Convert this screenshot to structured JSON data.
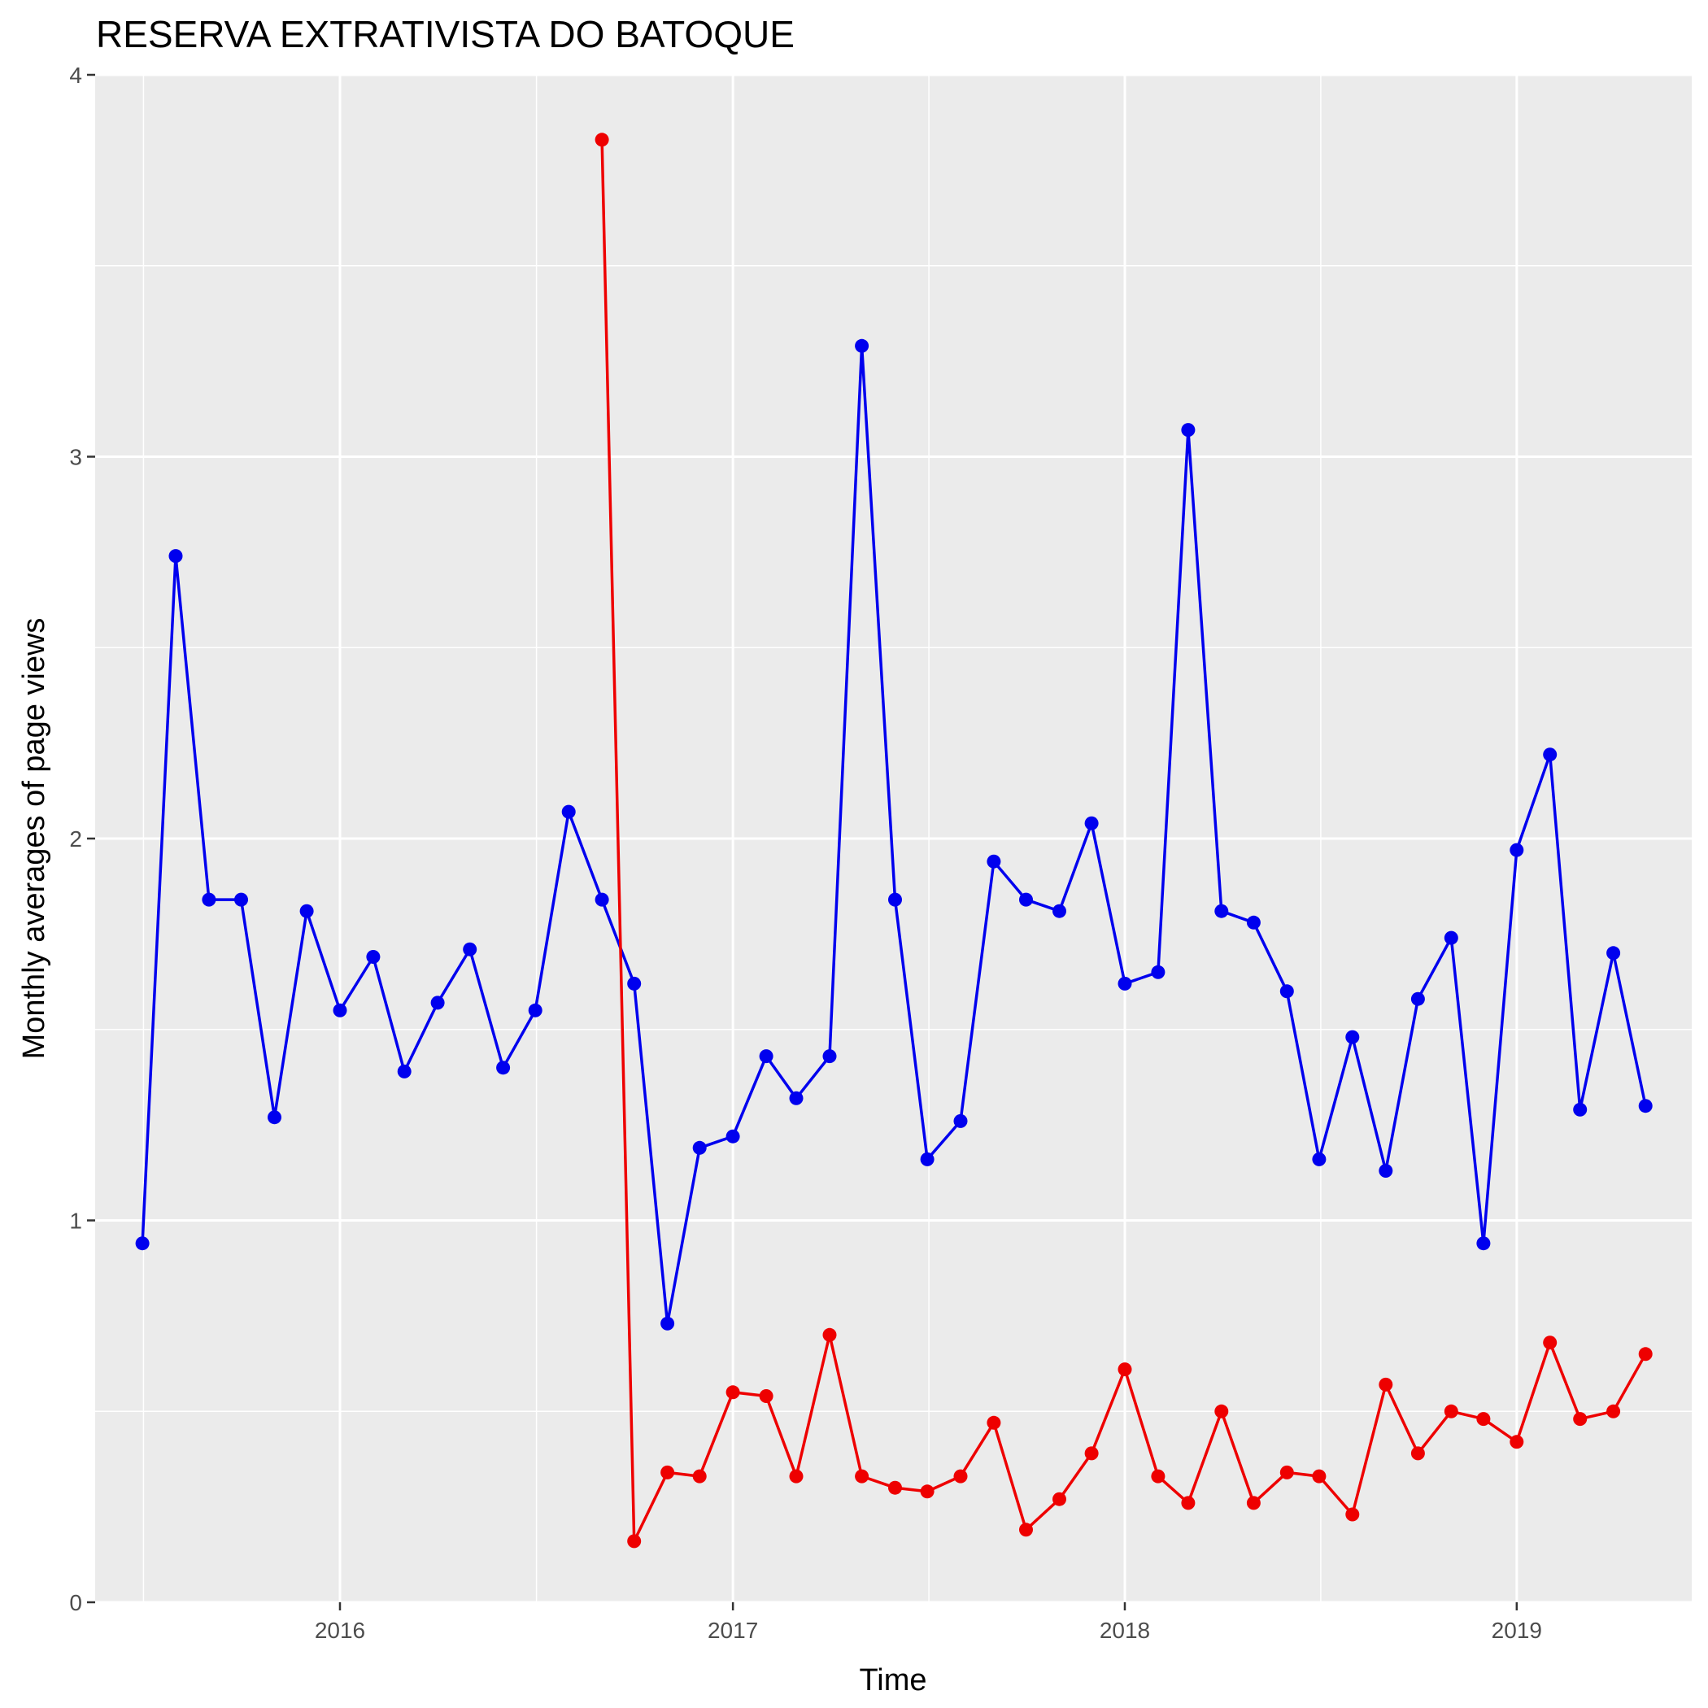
{
  "chart_data": {
    "type": "line",
    "title": "RESERVA EXTRATIVISTA DO BATOQUE",
    "xlabel": "Time",
    "ylabel": "Monthly averages of page views",
    "ylim": [
      0,
      4
    ],
    "xlim": [
      "2015-05-18",
      "2019-06-13"
    ],
    "yticks": [
      0,
      1,
      2,
      3,
      4
    ],
    "xticks": [
      {
        "label": "2016",
        "date": "2016-01-01"
      },
      {
        "label": "2017",
        "date": "2017-01-01"
      },
      {
        "label": "2018",
        "date": "2018-01-01"
      },
      {
        "label": "2019",
        "date": "2019-01-01"
      }
    ],
    "grid": true,
    "legend": "none",
    "series": [
      {
        "color": "#0000ee",
        "x": [
          "2015-07-01",
          "2015-08-01",
          "2015-09-01",
          "2015-10-01",
          "2015-11-01",
          "2015-12-01",
          "2016-01-01",
          "2016-02-01",
          "2016-03-01",
          "2016-04-01",
          "2016-05-01",
          "2016-06-01",
          "2016-07-01",
          "2016-08-01",
          "2016-09-01",
          "2016-10-01",
          "2016-11-01",
          "2016-12-01",
          "2017-01-01",
          "2017-02-01",
          "2017-03-01",
          "2017-04-01",
          "2017-05-01",
          "2017-06-01",
          "2017-07-01",
          "2017-08-01",
          "2017-09-01",
          "2017-10-01",
          "2017-11-01",
          "2017-12-01",
          "2018-01-01",
          "2018-02-01",
          "2018-03-01",
          "2018-04-01",
          "2018-05-01",
          "2018-06-01",
          "2018-07-01",
          "2018-08-01",
          "2018-09-01",
          "2018-10-01",
          "2018-11-01",
          "2018-12-01",
          "2019-01-01",
          "2019-02-01",
          "2019-03-01",
          "2019-04-01",
          "2019-05-01"
        ],
        "values": [
          0.94,
          2.74,
          1.84,
          1.84,
          1.27,
          1.81,
          1.55,
          1.69,
          1.39,
          1.57,
          1.71,
          1.4,
          1.55,
          2.07,
          1.84,
          1.62,
          0.73,
          1.19,
          1.22,
          1.43,
          1.32,
          1.43,
          3.29,
          1.84,
          1.16,
          1.26,
          1.94,
          1.84,
          1.81,
          2.04,
          1.62,
          1.65,
          3.07,
          1.81,
          1.78,
          1.6,
          1.16,
          1.48,
          1.13,
          1.58,
          1.74,
          0.94,
          1.97,
          2.22,
          1.29,
          1.7,
          1.3
        ]
      },
      {
        "color": "#ee0000",
        "x": [
          "2016-09-01",
          "2016-10-01",
          "2016-11-01",
          "2016-12-01",
          "2017-01-01",
          "2017-02-01",
          "2017-03-01",
          "2017-04-01",
          "2017-05-01",
          "2017-06-01",
          "2017-07-01",
          "2017-08-01",
          "2017-09-01",
          "2017-10-01",
          "2017-11-01",
          "2017-12-01",
          "2018-01-01",
          "2018-02-01",
          "2018-03-01",
          "2018-04-01",
          "2018-05-01",
          "2018-06-01",
          "2018-07-01",
          "2018-08-01",
          "2018-09-01",
          "2018-10-01",
          "2018-11-01",
          "2018-12-01",
          "2019-01-01",
          "2019-02-01",
          "2019-03-01",
          "2019-04-01",
          "2019-05-01"
        ],
        "values": [
          3.83,
          0.16,
          0.34,
          0.33,
          0.55,
          0.54,
          0.33,
          0.7,
          0.33,
          0.3,
          0.29,
          0.33,
          0.47,
          0.19,
          0.27,
          0.39,
          0.61,
          0.33,
          0.26,
          0.5,
          0.26,
          0.34,
          0.33,
          0.23,
          0.57,
          0.39,
          0.5,
          0.48,
          0.42,
          0.68,
          0.48,
          0.5,
          0.65
        ]
      }
    ]
  }
}
